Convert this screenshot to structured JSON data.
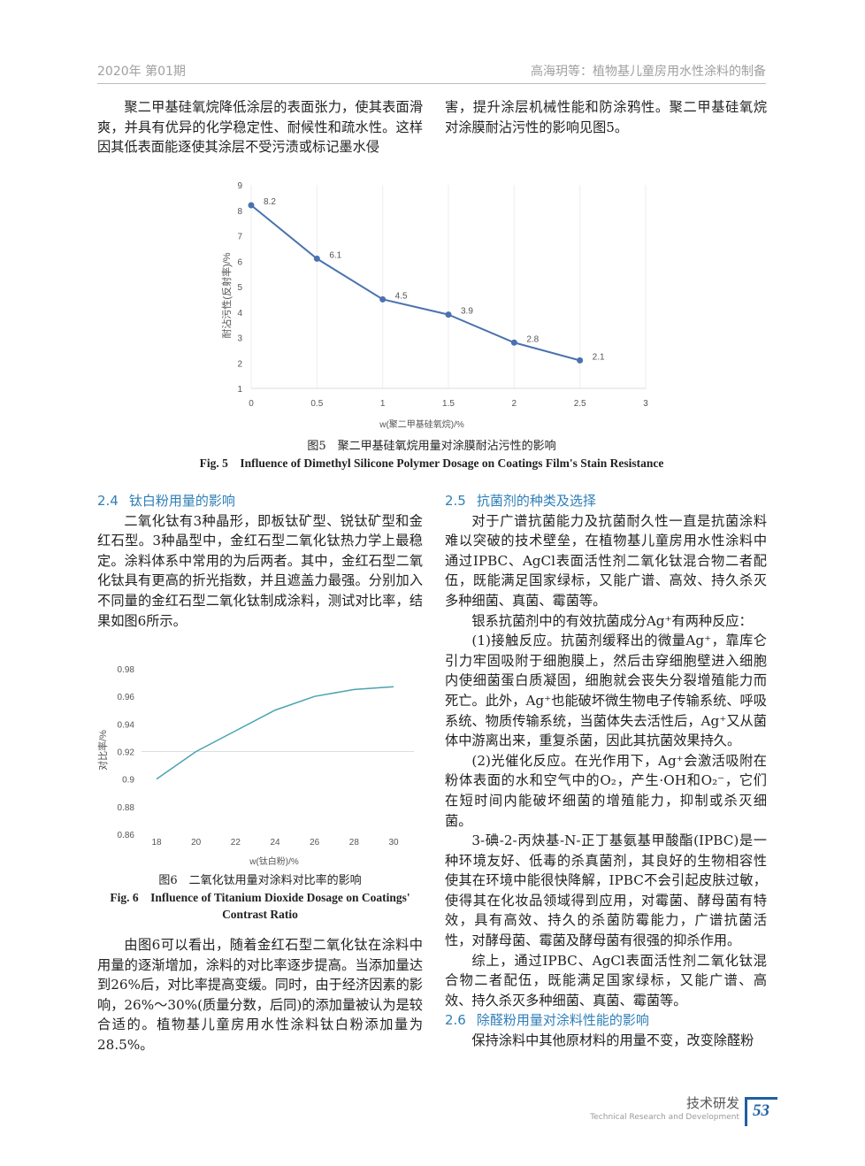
{
  "header": {
    "left": "2020年  第01期",
    "right": "高海玥等：植物基儿童房用水性涂料的制备"
  },
  "intro": {
    "left": "聚二甲基硅氧烷降低涂层的表面张力，使其表面滑爽，并具有优异的化学稳定性、耐候性和疏水性。这样因其低表面能逐使其涂层不受污渍或标记墨水侵",
    "right": "害，提升涂层机械性能和防涂鸦性。聚二甲基硅氧烷对涂膜耐沾污性的影响见图5。"
  },
  "fig5": {
    "caption_cn": "图5　聚二甲基硅氧烷用量对涂膜耐沾污性的影响",
    "caption_en": "Fig. 5　Influence of Dimethyl Silicone Polymer Dosage on Coatings Film's Stain Resistance"
  },
  "fig6": {
    "caption_cn": "图6　二氧化钛用量对涂料对比率的影响",
    "caption_en": "Fig. 6　Influence of Titanium Dioxide Dosage on Coatings' Contrast Ratio"
  },
  "chart_data": [
    {
      "type": "line",
      "title": "",
      "xlabel": "w(聚二甲基硅氧烷)/%",
      "ylabel": "耐沾污性(反射率)/%",
      "x": [
        0,
        0.5,
        1,
        1.5,
        2,
        2.5
      ],
      "values": [
        8.2,
        6.1,
        4.5,
        3.9,
        2.8,
        2.1
      ],
      "data_labels": [
        "8.2",
        "6.1",
        "4.5",
        "3.9",
        "2.8",
        "2.1"
      ],
      "xlim": [
        0,
        3
      ],
      "ylim": [
        1,
        9
      ],
      "xticks": [
        "0",
        "0.5",
        "1",
        "1.5",
        "2",
        "2.5",
        "3"
      ],
      "yticks": [
        "1",
        "2",
        "3",
        "4",
        "5",
        "6",
        "7",
        "8",
        "9"
      ],
      "grid": "vertical",
      "markers": true,
      "color": "#4a72b0"
    },
    {
      "type": "line",
      "title": "",
      "xlabel": "w(钛白粉)/%",
      "ylabel": "对比率/%",
      "categories": [
        "18",
        "20",
        "22",
        "24",
        "26",
        "28",
        "30"
      ],
      "values": [
        0.9,
        0.92,
        0.935,
        0.95,
        0.96,
        0.965,
        0.967
      ],
      "ylim": [
        0.86,
        0.98
      ],
      "yticks": [
        "0.86",
        "0.88",
        "0.9",
        "0.92",
        "0.94",
        "0.96",
        "0.98"
      ],
      "grid": "0.92 line",
      "markers": false,
      "color": "#4aa3b0"
    }
  ],
  "left": {
    "s24_num": "2.4",
    "s24_title": "钛白粉用量的影响",
    "p1": "二氧化钛有3种晶形，即板钛矿型、锐钛矿型和金红石型。3种晶型中，金红石型二氧化钛热力学上最稳定。涂料体系中常用的为后两者。其中，金红石型二氧化钛具有更高的折光指数，并且遮盖力最强。分别加入不同量的金红石型二氧化钛制成涂料，测试对比率，结果如图6所示。",
    "p2": "由图6可以看出，随着金红石型二氧化钛在涂料中用量的逐渐增加，涂料的对比率逐步提高。当添加量达到26%后，对比率提高变缓。同时，由于经济因素的影响，26%～30%(质量分数，后同)的添加量被认为是较合适的。植物基儿童房用水性涂料钛白粉添加量为28.5%。"
  },
  "right": {
    "s25_num": "2.5",
    "s25_title": "抗菌剂的种类及选择",
    "p1": "对于广谱抗菌能力及抗菌耐久性一直是抗菌涂料难以突破的技术壁垒，在植物基儿童房用水性涂料中通过IPBC、AgCl表面活性剂二氧化钛混合物二者配伍，既能满足国家绿标，又能广谱、高效、持久杀灭多种细菌、真菌、霉菌等。",
    "p2": "银系抗菌剂中的有效抗菌成分Ag⁺有两种反应：",
    "p3": "(1)接触反应。抗菌剂缓释出的微量Ag⁺，靠库仑引力牢固吸附于细胞膜上，然后击穿细胞壁进入细胞内使细菌蛋白质凝固，细胞就会丧失分裂增殖能力而死亡。此外，Ag⁺也能破坏微生物电子传输系统、呼吸系统、物质传输系统，当菌体失去活性后，Ag⁺又从菌体中游离出来，重复杀菌，因此其抗菌效果持久。",
    "p4": "(2)光催化反应。在光作用下，Ag⁺会激活吸附在粉体表面的水和空气中的O₂，产生·OH和O₂⁻，它们在短时间内能破坏细菌的增殖能力，抑制或杀灭细菌。",
    "p5": "3-碘-2-丙炔基-N-正丁基氨基甲酸酯(IPBC)是一种环境友好、低毒的杀真菌剂，其良好的生物相容性使其在环境中能很快降解，IPBC不会引起皮肤过敏，使得其在化妆品领域得到应用，对霉菌、酵母菌有特效，具有高效、持久的杀菌防霉能力，广谱抗菌活性，对酵母菌、霉菌及酵母菌有很强的抑杀作用。",
    "p6": "综上，通过IPBC、AgCl表面活性剂二氧化钛混合物二者配伍，既能满足国家绿标，又能广谱、高效、持久杀灭多种细菌、真菌、霉菌等。",
    "s26_num": "2.6",
    "s26_title": "除醛粉用量对涂料性能的影响",
    "p7": "保持涂料中其他原材料的用量不变，改变除醛粉"
  },
  "footer": {
    "cn": "技术研发",
    "en": "Technical Research and Development",
    "page": "53",
    "accent": "#1f5fa0"
  }
}
